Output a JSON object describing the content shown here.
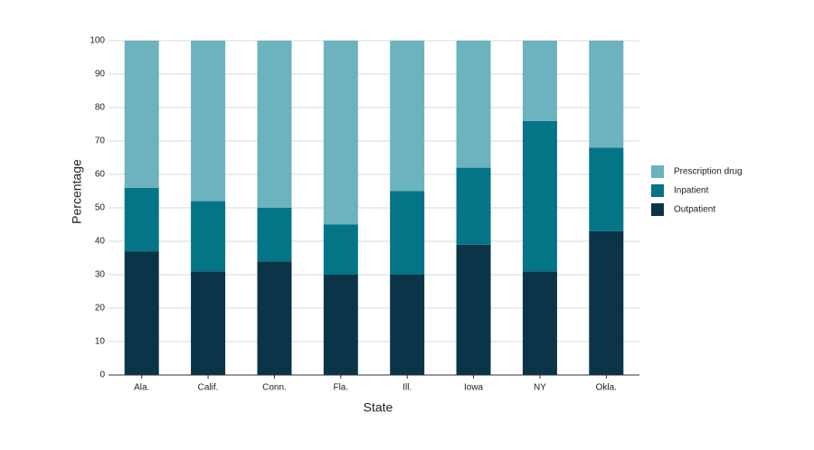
{
  "chart_data": {
    "type": "stacked_bar",
    "x_label": "State",
    "y_label": "Percentage",
    "categories": [
      "Ala.",
      "Calif.",
      "Conn.",
      "Fla.",
      "Ill.",
      "Iowa",
      "NY",
      "Okla."
    ],
    "series": [
      {
        "name": "Outpatient",
        "color": "#0b3449",
        "values": [
          37,
          31,
          34,
          30,
          30,
          39,
          31,
          43
        ]
      },
      {
        "name": "Inpatient",
        "color": "#047487",
        "values": [
          19,
          21,
          16,
          15,
          25,
          23,
          45,
          25
        ]
      },
      {
        "name": "Prescription drug",
        "color": "#6cb2bf",
        "values": [
          44,
          48,
          50,
          55,
          45,
          38,
          24,
          32
        ]
      }
    ],
    "ylim": [
      0,
      100
    ],
    "yticks": [
      0,
      10,
      20,
      30,
      40,
      50,
      60,
      70,
      80,
      90,
      100
    ],
    "grid": true
  }
}
